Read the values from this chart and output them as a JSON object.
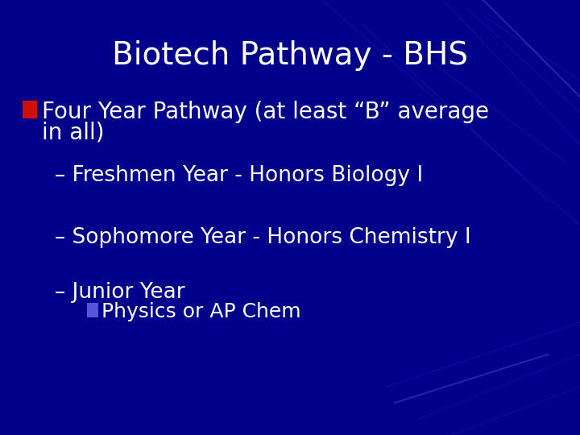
{
  "title": "Biotech Pathway - BHS",
  "title_color": "#FFFFFF",
  "title_fontsize": 28,
  "background_color": "#00008B",
  "text_color": "#FFFFFF",
  "bullet1_line1": "Four Year Pathway (at least “B” average",
  "bullet1_line2": "in all)",
  "bullet1_color": "#CC1100",
  "bullet1_fontsize": 20,
  "sub1_text": "– Freshmen Year - Honors Biology I",
  "sub2_text": "– Sophomore Year - Honors Chemistry I",
  "sub3_text": "– Junior Year",
  "sub_fontsize": 19,
  "subbullet_text": "Physics or AP Chem",
  "subbullet_color": "#5555DD",
  "subbullet_fontsize": 18,
  "bg_color": "#00008B"
}
